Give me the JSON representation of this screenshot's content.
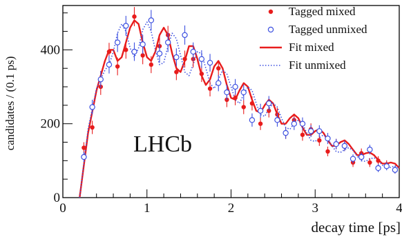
{
  "chart_data": {
    "type": "scatter",
    "ylabel": "candidates / (0.1 ps)",
    "xlabel": "decay time [ps]",
    "watermark": "LHCb",
    "xlim": [
      0,
      4
    ],
    "ylim": [
      0,
      520
    ],
    "x_ticks": [
      0,
      1,
      2,
      3,
      4
    ],
    "y_ticks": [
      0,
      200,
      400
    ],
    "legend_position": "top-right",
    "series": [
      {
        "name": "Tagged mixed",
        "kind": "points",
        "marker": "filled-circle",
        "color": "#e81c1c",
        "x": [
          0.25,
          0.35,
          0.45,
          0.55,
          0.65,
          0.75,
          0.85,
          0.95,
          1.05,
          1.15,
          1.25,
          1.35,
          1.45,
          1.55,
          1.65,
          1.75,
          1.85,
          1.95,
          2.05,
          2.15,
          2.25,
          2.35,
          2.45,
          2.55,
          2.65,
          2.75,
          2.85,
          2.95,
          3.05,
          3.15,
          3.25,
          3.35,
          3.45,
          3.55,
          3.65,
          3.75,
          3.85,
          3.95
        ],
        "y": [
          135,
          190,
          300,
          395,
          355,
          400,
          490,
          385,
          360,
          410,
          440,
          340,
          375,
          375,
          335,
          295,
          350,
          265,
          270,
          245,
          255,
          200,
          235,
          225,
          175,
          210,
          170,
          185,
          155,
          125,
          145,
          140,
          95,
          120,
          95,
          100,
          90,
          75
        ],
        "err": [
          15,
          18,
          22,
          24,
          24,
          24,
          26,
          24,
          23,
          24,
          25,
          22,
          23,
          23,
          22,
          21,
          22,
          20,
          20,
          19,
          19,
          17,
          18,
          18,
          16,
          17,
          16,
          16,
          15,
          13,
          14,
          14,
          12,
          13,
          12,
          12,
          11,
          10
        ]
      },
      {
        "name": "Tagged unmixed",
        "kind": "points",
        "marker": "open-circle",
        "color": "#3b4fe0",
        "x": [
          0.25,
          0.35,
          0.45,
          0.55,
          0.65,
          0.75,
          0.85,
          0.95,
          1.05,
          1.15,
          1.25,
          1.35,
          1.45,
          1.55,
          1.65,
          1.75,
          1.85,
          1.95,
          2.05,
          2.15,
          2.25,
          2.35,
          2.45,
          2.55,
          2.65,
          2.75,
          2.85,
          2.95,
          3.05,
          3.15,
          3.25,
          3.35,
          3.45,
          3.55,
          3.65,
          3.75,
          3.85,
          3.95
        ],
        "y": [
          110,
          245,
          320,
          360,
          420,
          465,
          395,
          415,
          480,
          390,
          420,
          380,
          440,
          395,
          375,
          365,
          310,
          285,
          300,
          285,
          210,
          235,
          255,
          210,
          175,
          200,
          200,
          180,
          180,
          160,
          145,
          140,
          105,
          110,
          130,
          80,
          85,
          75
        ],
        "err": [
          14,
          20,
          23,
          24,
          26,
          27,
          25,
          26,
          28,
          25,
          26,
          24,
          26,
          25,
          24,
          24,
          22,
          21,
          21,
          21,
          18,
          19,
          20,
          18,
          16,
          17,
          17,
          16,
          16,
          15,
          14,
          14,
          12,
          12,
          13,
          11,
          11,
          10
        ]
      },
      {
        "name": "Fit mixed",
        "kind": "line",
        "style": "solid",
        "color": "#e81c1c",
        "x": [
          0.2,
          0.3,
          0.4,
          0.5,
          0.55,
          0.6,
          0.65,
          0.7,
          0.75,
          0.8,
          0.85,
          0.9,
          0.95,
          1.0,
          1.05,
          1.1,
          1.15,
          1.2,
          1.25,
          1.3,
          1.35,
          1.4,
          1.45,
          1.5,
          1.55,
          1.6,
          1.65,
          1.7,
          1.75,
          1.8,
          1.85,
          1.9,
          1.95,
          2.0,
          2.05,
          2.1,
          2.15,
          2.2,
          2.25,
          2.3,
          2.35,
          2.4,
          2.45,
          2.5,
          2.55,
          2.6,
          2.65,
          2.7,
          2.75,
          2.8,
          2.85,
          2.9,
          2.95,
          3.0,
          3.05,
          3.1,
          3.15,
          3.2,
          3.25,
          3.3,
          3.35,
          3.4,
          3.45,
          3.5,
          3.55,
          3.6,
          3.65,
          3.7,
          3.75,
          3.8,
          3.85,
          3.9,
          3.95,
          4.0
        ],
        "y": [
          0,
          175,
          290,
          370,
          400,
          400,
          370,
          380,
          420,
          460,
          480,
          470,
          420,
          380,
          370,
          395,
          440,
          460,
          440,
          390,
          350,
          340,
          370,
          410,
          410,
          375,
          330,
          305,
          320,
          355,
          370,
          350,
          305,
          270,
          265,
          290,
          310,
          300,
          265,
          235,
          230,
          250,
          265,
          255,
          225,
          200,
          200,
          215,
          225,
          215,
          190,
          170,
          170,
          180,
          185,
          175,
          155,
          140,
          140,
          150,
          155,
          145,
          130,
          115,
          115,
          120,
          122,
          115,
          102,
          92,
          92,
          95,
          92,
          80
        ]
      },
      {
        "name": "Fit unmixed",
        "kind": "line",
        "style": "dotted",
        "color": "#3b4fe0",
        "x": [
          0.2,
          0.3,
          0.4,
          0.5,
          0.55,
          0.6,
          0.65,
          0.7,
          0.75,
          0.8,
          0.85,
          0.9,
          0.95,
          1.0,
          1.05,
          1.1,
          1.15,
          1.2,
          1.25,
          1.3,
          1.35,
          1.4,
          1.45,
          1.5,
          1.55,
          1.6,
          1.65,
          1.7,
          1.75,
          1.8,
          1.85,
          1.9,
          1.95,
          2.0,
          2.05,
          2.1,
          2.15,
          2.2,
          2.25,
          2.3,
          2.35,
          2.4,
          2.45,
          2.5,
          2.55,
          2.6,
          2.65,
          2.7,
          2.75,
          2.8,
          2.85,
          2.9,
          2.95,
          3.0,
          3.05,
          3.1,
          3.15,
          3.2,
          3.25,
          3.3,
          3.35,
          3.4,
          3.45,
          3.5,
          3.55,
          3.6,
          3.65,
          3.7,
          3.75,
          3.8,
          3.85,
          3.9,
          3.95,
          4.0
        ],
        "y": [
          0,
          185,
          295,
          345,
          360,
          395,
          445,
          470,
          450,
          405,
          380,
          405,
          455,
          475,
          450,
          400,
          360,
          365,
          410,
          445,
          430,
          385,
          340,
          330,
          360,
          395,
          390,
          350,
          310,
          295,
          320,
          345,
          335,
          300,
          265,
          255,
          280,
          300,
          290,
          255,
          225,
          220,
          240,
          255,
          245,
          215,
          190,
          185,
          200,
          210,
          200,
          175,
          155,
          152,
          162,
          170,
          160,
          140,
          125,
          122,
          130,
          135,
          128,
          112,
          100,
          98,
          105,
          108,
          100,
          88,
          80,
          82,
          86,
          80
        ]
      }
    ]
  }
}
